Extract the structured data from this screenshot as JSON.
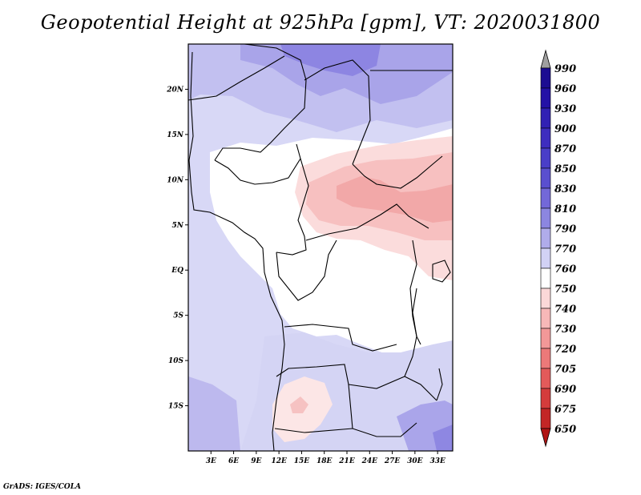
{
  "title": "Geopotential Height at 925hPa [gpm], VT: 2020031800",
  "credit": "GrADS: IGES/COLA",
  "map": {
    "lat_labels": [
      "20N",
      "15N",
      "10N",
      "5N",
      "EQ",
      "5S",
      "10S",
      "15S"
    ],
    "lon_labels": [
      "3E",
      "6E",
      "9E",
      "12E",
      "15E",
      "18E",
      "21E",
      "24E",
      "27E",
      "30E",
      "33E"
    ],
    "lat_values": [
      20,
      15,
      10,
      5,
      0,
      -5,
      -10,
      -15
    ],
    "lon_values": [
      3,
      6,
      9,
      12,
      15,
      18,
      21,
      24,
      27,
      30,
      33
    ],
    "extent": {
      "lon_min": 0,
      "lon_max": 35,
      "lat_min": -20,
      "lat_max": 25
    }
  },
  "colorbar": {
    "levels": [
      "990",
      "960",
      "930",
      "900",
      "870",
      "850",
      "830",
      "810",
      "790",
      "770",
      "760",
      "750",
      "740",
      "730",
      "720",
      "705",
      "690",
      "675",
      "650"
    ],
    "colors": [
      "#1c0d92",
      "#2412a6",
      "#3121b4",
      "#3e2dbf",
      "#4a3ec8",
      "#5a4fcf",
      "#7368d8",
      "#8c86e0",
      "#b0acea",
      "#d2d2f5",
      "#ffffff",
      "#fbd8d8",
      "#f7b8b8",
      "#f29898",
      "#ec7979",
      "#e35a5a",
      "#d43c3c",
      "#c32626",
      "#b01515"
    ]
  }
}
